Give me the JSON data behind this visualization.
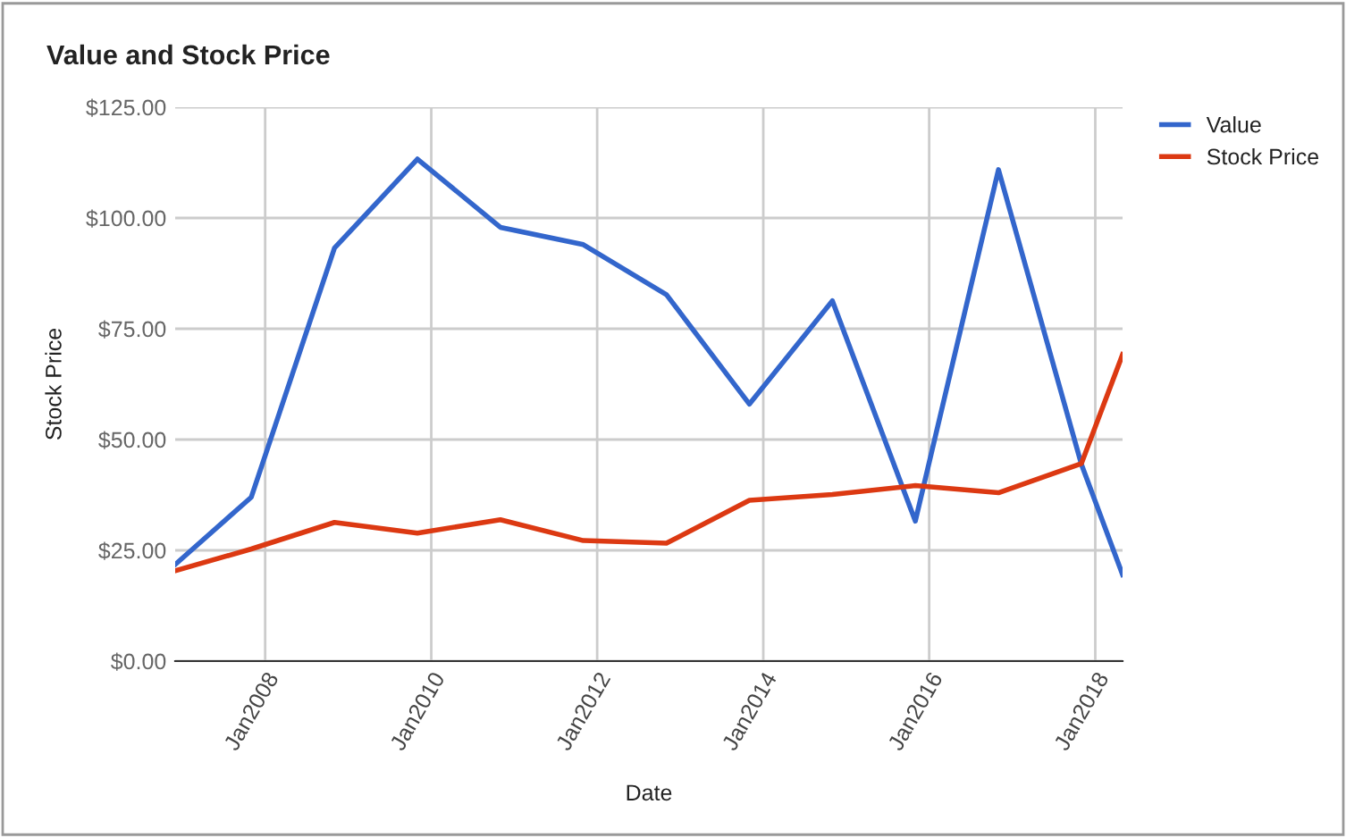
{
  "chart_data": {
    "type": "line",
    "title": "Value and Stock Price",
    "xlabel": "Date",
    "ylabel": "Stock Price",
    "x": [
      "2006-12",
      "2007-11",
      "2008-11",
      "2009-11",
      "2010-11",
      "2011-11",
      "2012-11",
      "2013-11",
      "2014-11",
      "2015-11",
      "2016-11",
      "2017-11",
      "2018-05"
    ],
    "series": [
      {
        "name": "Value",
        "color": "#3366cc",
        "values": [
          21.8,
          37,
          93.2,
          113.3,
          97.9,
          94,
          82.7,
          58,
          81.3,
          31.6,
          110.9,
          44.4,
          19.5
        ]
      },
      {
        "name": "Stock Price",
        "color": "#dc3912",
        "values": [
          20.4,
          25.3,
          31.3,
          28.9,
          31.9,
          27.2,
          26.6,
          36.3,
          37.6,
          39.6,
          38,
          44.6,
          69.2
        ]
      }
    ],
    "xlim": [
      "2006-12",
      "2018-05"
    ],
    "xticks": [
      {
        "value": "2008-01",
        "label": "Jan2008"
      },
      {
        "value": "2010-01",
        "label": "Jan2010"
      },
      {
        "value": "2012-01",
        "label": "Jan2012"
      },
      {
        "value": "2014-01",
        "label": "Jan2014"
      },
      {
        "value": "2016-01",
        "label": "Jan2016"
      },
      {
        "value": "2018-01",
        "label": "Jan2018"
      }
    ],
    "ylim": [
      0,
      125
    ],
    "yticks": [
      {
        "value": 0,
        "label": "$0.00"
      },
      {
        "value": 25,
        "label": "$25.00"
      },
      {
        "value": 50,
        "label": "$50.00"
      },
      {
        "value": 75,
        "label": "$75.00"
      },
      {
        "value": 100,
        "label": "$100.00"
      },
      {
        "value": 125,
        "label": "$125.00"
      }
    ],
    "grid": true,
    "legend": "top right",
    "marker": "none",
    "line_style": "solid"
  }
}
